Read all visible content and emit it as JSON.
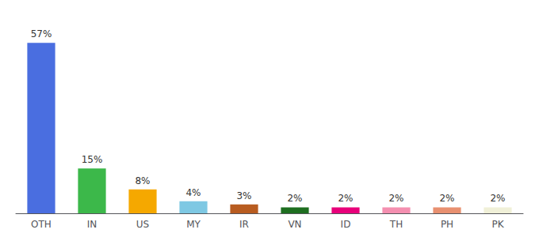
{
  "chart_data": {
    "type": "bar",
    "categories": [
      "OTH",
      "IN",
      "US",
      "MY",
      "IR",
      "VN",
      "ID",
      "TH",
      "PH",
      "PK"
    ],
    "values": [
      57,
      15,
      8,
      4,
      3,
      2,
      2,
      2,
      2,
      2
    ],
    "value_labels": [
      "57%",
      "15%",
      "8%",
      "4%",
      "3%",
      "2%",
      "2%",
      "2%",
      "2%",
      "2%"
    ],
    "colors": [
      "#4a6ee0",
      "#3cb84a",
      "#f5a800",
      "#7ec8e3",
      "#b85c20",
      "#1e6e20",
      "#e8007a",
      "#f48fb0",
      "#e89070",
      "#f0f0d8"
    ],
    "ylim": [
      0,
      65
    ],
    "data_labels": true,
    "tick_labels": "x",
    "grid": false
  }
}
